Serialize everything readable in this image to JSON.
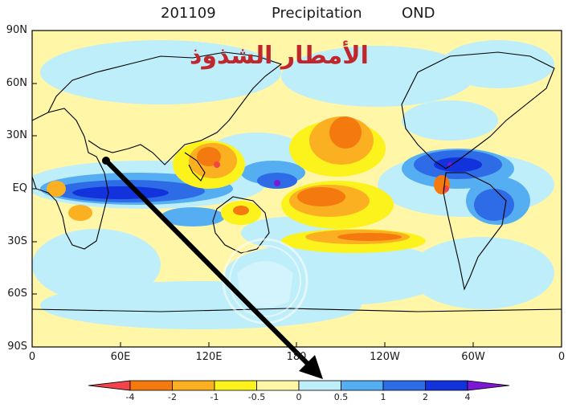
{
  "header": {
    "date": "201109",
    "variable": "Precipitation",
    "season": "OND"
  },
  "overlay_text": "الأمطار الشذوذ",
  "lat_labels": [
    "90N",
    "60N",
    "30N",
    "EQ",
    "30S",
    "60S",
    "90S"
  ],
  "lon_labels": [
    "0",
    "60E",
    "120E",
    "180",
    "120W",
    "60W",
    "0"
  ],
  "colorbar": {
    "ticks": [
      "-4",
      "-2",
      "-1",
      "-0.5",
      "0",
      "0.5",
      "1",
      "2",
      "4"
    ],
    "colors": [
      "#f2444a",
      "#f47a10",
      "#fbb022",
      "#fcf21c",
      "#fff6a8",
      "#bdeefa",
      "#56aef2",
      "#2e6be6",
      "#1232dc",
      "#7a18d6"
    ]
  },
  "colors": {
    "ocean_neutral": "#fff6a8",
    "wet_light": "#bdeefa",
    "dry_orange": "#f47a10",
    "coastline": "#000000",
    "arrow": "#000000"
  }
}
